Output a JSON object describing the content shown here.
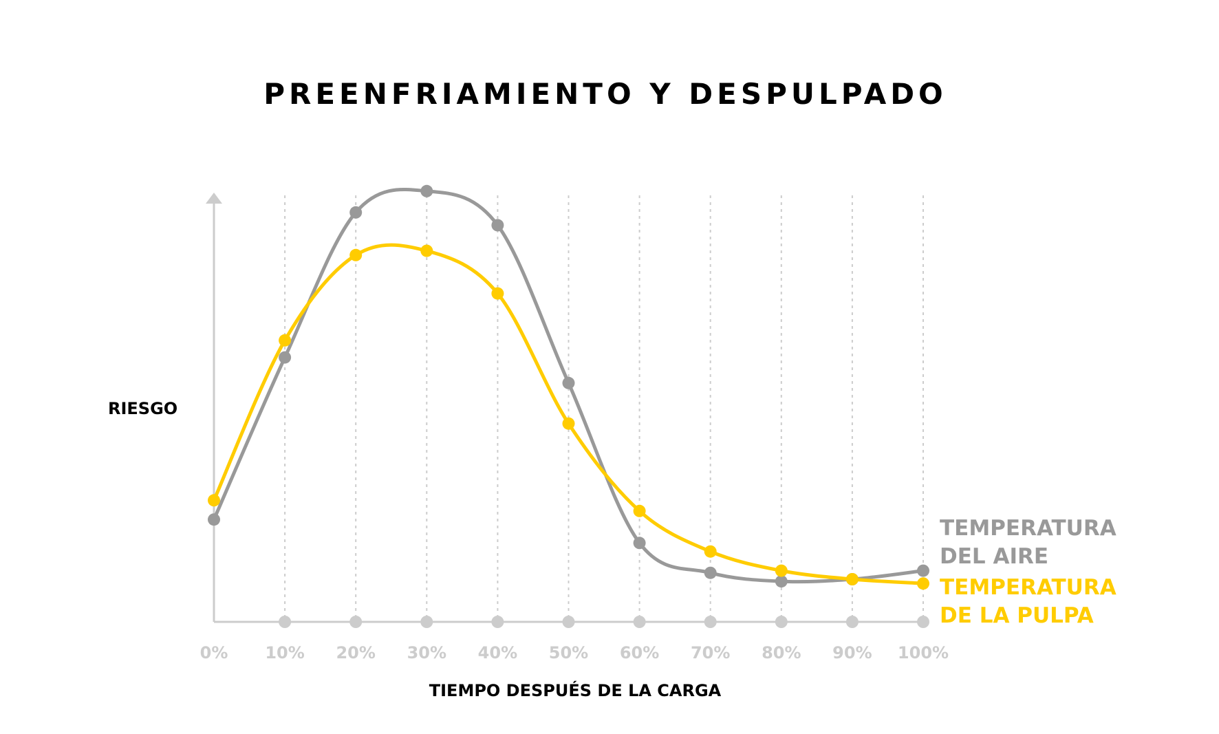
{
  "chart_data": {
    "type": "line",
    "title": "PREENFRIAMIENTO Y DESPULPADO",
    "xlabel": "TIEMPO DESPUÉS DE LA CARGA",
    "ylabel": "RIESGO",
    "categories": [
      "0%",
      "10%",
      "20%",
      "30%",
      "40%",
      "50%",
      "60%",
      "70%",
      "80%",
      "90%",
      "100%"
    ],
    "ylim": [
      0,
      105
    ],
    "grid": "vertical dotted",
    "legend": "right",
    "smooth": true,
    "series": [
      {
        "name": "TEMPERATURA DEL AIRE",
        "legend_lines": [
          "TEMPERATURA",
          "DEL AIRE"
        ],
        "color": "#999999",
        "values": [
          24,
          62,
          96,
          101,
          93,
          56,
          18.5,
          11.5,
          9.5,
          10,
          12
        ]
      },
      {
        "name": "TEMPERATURA DE LA PULPA",
        "legend_lines": [
          "TEMPERATURA",
          "DE LA PULPA"
        ],
        "color": "#FFCC00",
        "values": [
          28.5,
          66,
          86,
          87,
          77,
          46.5,
          26,
          16.5,
          12,
          10,
          9
        ]
      }
    ],
    "axis_color": "#CCCCCC"
  }
}
